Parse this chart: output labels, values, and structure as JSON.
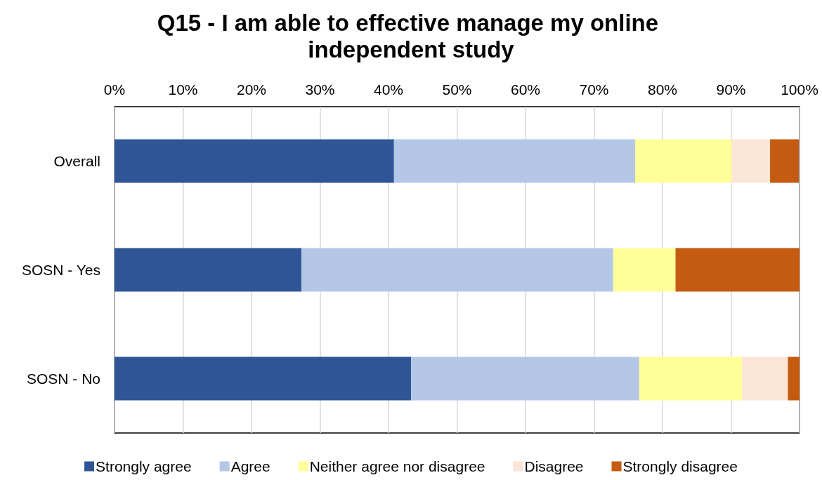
{
  "chart_data": {
    "type": "bar",
    "orientation": "horizontal",
    "stacked": true,
    "title": "Q15 - I am able to effective manage my online independent study",
    "categories": [
      "Overall",
      "SOSN - Yes",
      "SOSN - No"
    ],
    "series": [
      {
        "name": "Strongly agree",
        "color": "#2f5597",
        "values": [
          40.8,
          27.3,
          43.3
        ]
      },
      {
        "name": "Agree",
        "color": "#b4c7e7",
        "values": [
          35.2,
          45.5,
          33.3
        ]
      },
      {
        "name": "Neither agree nor disagree",
        "color": "#ffff99",
        "values": [
          14.1,
          9.1,
          15.0
        ]
      },
      {
        "name": "Disagree",
        "color": "#fbe5d6",
        "values": [
          5.6,
          0,
          6.7
        ]
      },
      {
        "name": "Strongly disagree",
        "color": "#c55a11",
        "values": [
          4.2,
          18.2,
          1.7
        ]
      }
    ],
    "xlim": [
      0,
      100
    ],
    "xticks": [
      {
        "value": 0,
        "label": "0%"
      },
      {
        "value": 10,
        "label": "10%"
      },
      {
        "value": 20,
        "label": "20%"
      },
      {
        "value": 30,
        "label": "30%"
      },
      {
        "value": 40,
        "label": "40%"
      },
      {
        "value": 50,
        "label": "50%"
      },
      {
        "value": 60,
        "label": "60%"
      },
      {
        "value": 70,
        "label": "70%"
      },
      {
        "value": 80,
        "label": "80%"
      },
      {
        "value": 90,
        "label": "90%"
      },
      {
        "value": 100,
        "label": "100%"
      }
    ],
    "grid": "x",
    "legend": "bottom"
  }
}
